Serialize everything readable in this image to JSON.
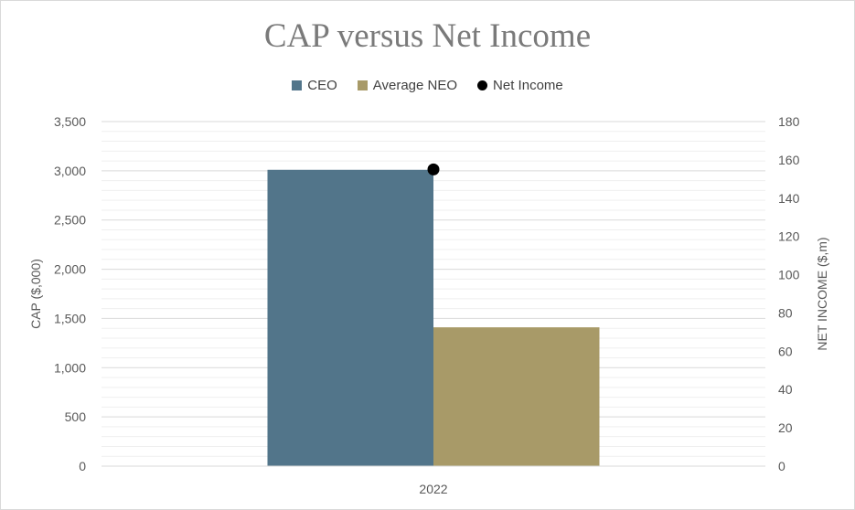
{
  "chart_data": {
    "type": "bar",
    "title": "CAP versus Net Income",
    "categories": [
      "2022"
    ],
    "series": [
      {
        "name": "CEO",
        "type": "bar",
        "axis": "left",
        "color": "#52758a",
        "values": [
          3010
        ]
      },
      {
        "name": "Average NEO",
        "type": "bar",
        "axis": "left",
        "color": "#a89a68",
        "values": [
          1410
        ]
      },
      {
        "name": "Net Income",
        "type": "scatter",
        "axis": "right",
        "color": "#000000",
        "values": [
          155
        ]
      }
    ],
    "ylabel": "CAP ($,000)",
    "y2label": "NET INCOME ($,m)",
    "ylim": [
      0,
      3500
    ],
    "y2lim": [
      0,
      180
    ],
    "yticks": [
      "0",
      "500",
      "1,000",
      "1,500",
      "2,000",
      "2,500",
      "3,000",
      "3,500"
    ],
    "y2ticks": [
      "0",
      "20",
      "40",
      "60",
      "80",
      "100",
      "120",
      "140",
      "160",
      "180"
    ],
    "grid": true,
    "legend_position": "top"
  }
}
